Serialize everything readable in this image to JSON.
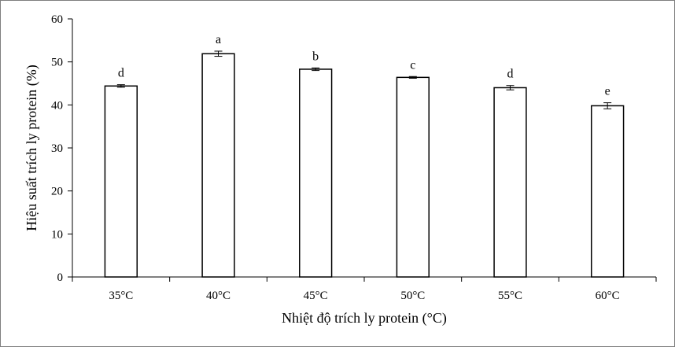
{
  "chart_data": {
    "type": "bar",
    "categories": [
      "35°C",
      "40°C",
      "45°C",
      "50°C",
      "55°C",
      "60°C"
    ],
    "series": [
      {
        "values": [
          44.4,
          51.9,
          48.3,
          46.4,
          44.0,
          39.8
        ],
        "errors": [
          0.3,
          0.6,
          0.3,
          0.2,
          0.5,
          0.7
        ],
        "significance": [
          "d",
          "a",
          "b",
          "c",
          "d",
          "e"
        ]
      }
    ],
    "xlabel": "Nhiệt độ trích ly protein (°C)",
    "ylabel": "Hiệu suất trích ly protein (%)",
    "ylim": [
      0,
      60
    ],
    "yticks": [
      "0",
      "10",
      "20",
      "30",
      "40",
      "50",
      "60"
    ],
    "grid": false,
    "legend": "none",
    "colors": {
      "bar_fill": "#ffffff",
      "bar_stroke": "#000000",
      "axis": "#000000"
    }
  }
}
